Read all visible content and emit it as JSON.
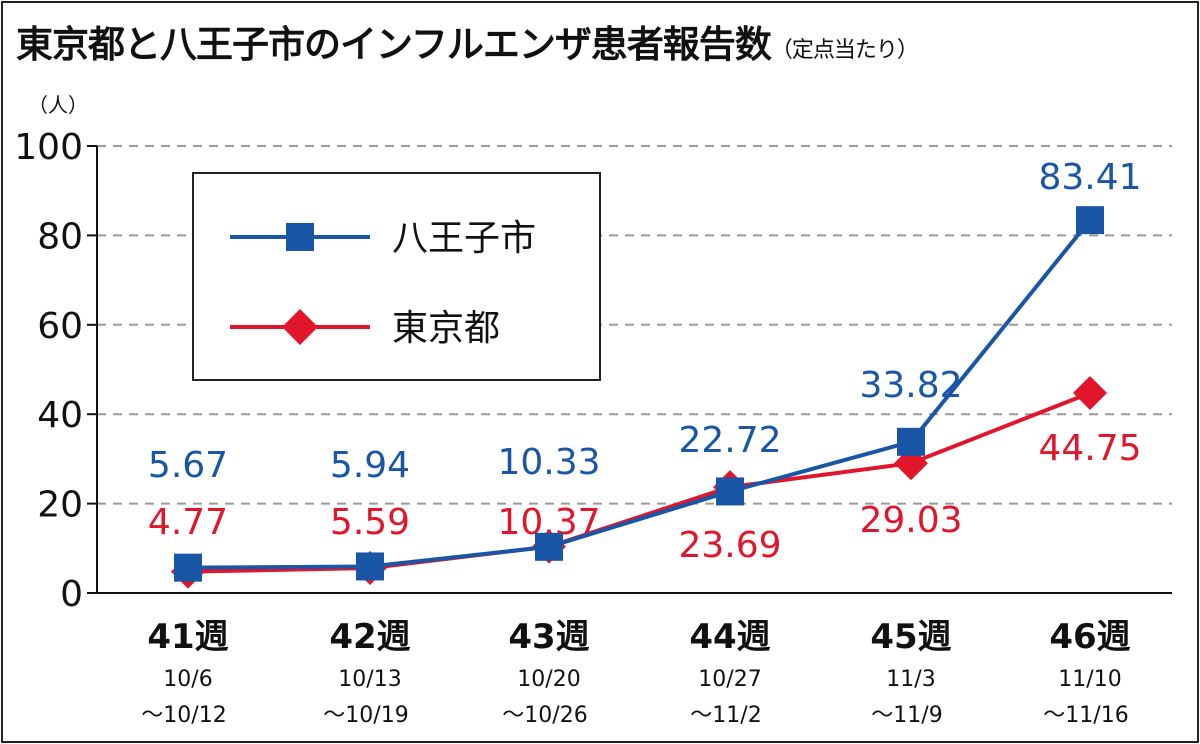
{
  "chart_data": {
    "type": "line",
    "title": "東京都と八王子市のインフルエンザ患者報告数",
    "subtitle": "（定点当たり）",
    "ylabel": "（人）",
    "ylim": [
      0,
      100
    ],
    "yticks": [
      "0",
      "20",
      "40",
      "60",
      "80",
      "100"
    ],
    "grid": true,
    "legend_position": "top-left",
    "categories": [
      "41週",
      "42週",
      "43週",
      "44週",
      "45週",
      "46週"
    ],
    "category_dates": [
      [
        "10/6",
        "～10/12"
      ],
      [
        "10/13",
        "～10/19"
      ],
      [
        "10/20",
        "～10/26"
      ],
      [
        "10/27",
        "～11/2"
      ],
      [
        "11/3",
        "～11/9"
      ],
      [
        "11/10",
        "～11/16"
      ]
    ],
    "series": [
      {
        "name": "八王子市",
        "color": "#1a56a6",
        "marker": "square",
        "values": [
          5.67,
          5.94,
          10.33,
          22.72,
          33.82,
          83.41
        ],
        "labels": [
          "5.67",
          "5.94",
          "10.33",
          "22.72",
          "33.82",
          "83.41"
        ]
      },
      {
        "name": "東京都",
        "color": "#e1152b",
        "marker": "diamond",
        "values": [
          4.77,
          5.59,
          10.37,
          23.69,
          29.03,
          44.75
        ],
        "labels": [
          "4.77",
          "5.59",
          "10.37",
          "23.69",
          "29.03",
          "44.75"
        ]
      }
    ]
  }
}
